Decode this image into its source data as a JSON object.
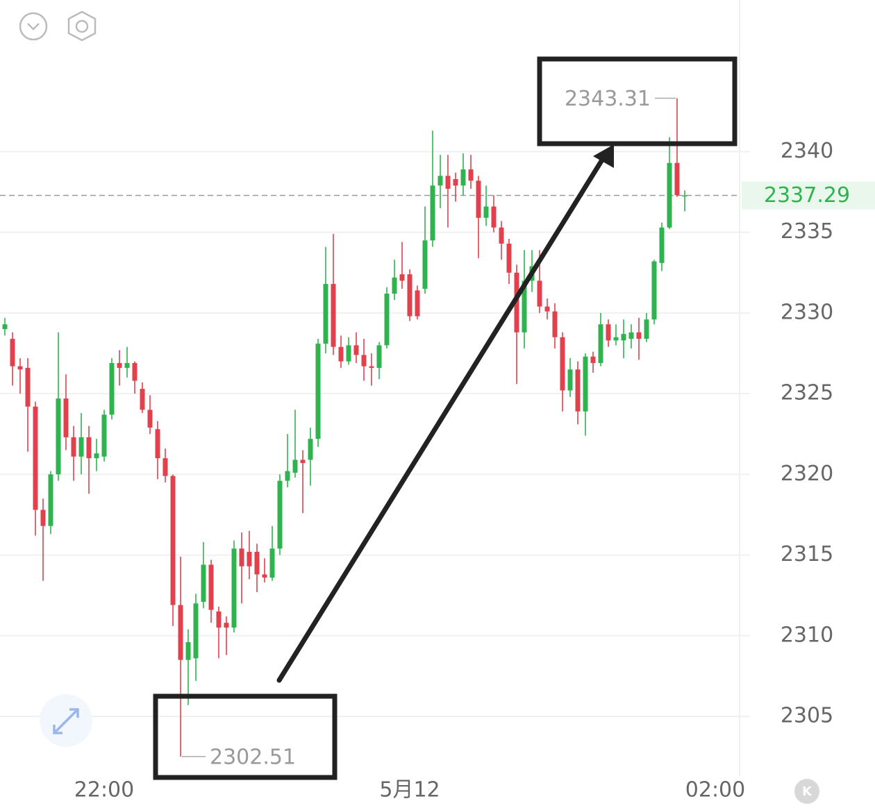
{
  "chart_data": {
    "type": "candlestick",
    "categories": [
      null,
      null,
      null,
      null,
      null,
      null,
      null,
      null,
      null,
      null,
      null,
      null,
      null,
      "22:00",
      null,
      null,
      null,
      null,
      null,
      null,
      null,
      null,
      null,
      null,
      null,
      null,
      null,
      null,
      null,
      null,
      null,
      null,
      null,
      null,
      null,
      null,
      null,
      null,
      null,
      null,
      null,
      null,
      null,
      null,
      null,
      null,
      null,
      null,
      null,
      null,
      null,
      null,
      null,
      "5月12",
      null,
      null,
      null,
      null,
      null,
      null,
      null,
      null,
      null,
      null,
      null,
      null,
      null,
      null,
      null,
      null,
      null,
      null,
      null,
      null,
      null,
      null,
      null,
      null,
      null,
      null,
      null,
      null,
      null,
      null,
      null,
      null,
      null,
      null,
      null,
      null,
      null,
      null,
      null,
      "02:00",
      null,
      null,
      null
    ],
    "open": [
      2329.0,
      2328.4,
      2326.7,
      2326.6,
      2324.2,
      2317.8,
      2316.8,
      2320.0,
      2324.7,
      2322.3,
      2321.1,
      2322.3,
      2321.0,
      2321.1,
      2323.7,
      2326.9,
      2326.6,
      2326.9,
      2325.3,
      2324.0,
      2322.8,
      2321.0,
      2319.9,
      2311.9,
      2308.5,
      2308.6,
      2312.1,
      2314.4,
      2311.5,
      2310.8,
      2310.5,
      2315.4,
      2315.2,
      2315.2,
      2313.8,
      2313.6,
      2315.4,
      2319.6,
      2320.1,
      2320.9,
      2320.9,
      2322.2,
      2328.1,
      2331.8,
      2327.9,
      2327.0,
      2328.0,
      2327.4,
      2326.7,
      2326.6,
      2328.0,
      2331.2,
      2332.4,
      2332.4,
      2331.4,
      2331.5,
      2334.5,
      2337.9,
      2338.5,
      2338.3,
      2337.9,
      2338.9,
      2338.2,
      2335.9,
      2336.6,
      2335.3,
      2334.3,
      2332.5,
      2328.8,
      2332.0,
      2332.0,
      2330.4,
      2330.1,
      2328.5,
      2325.2,
      2326.5,
      2323.9,
      2327.3,
      2326.9,
      2329.3,
      2328.3,
      2328.3,
      2328.4,
      2328.8,
      2328.4,
      2329.6,
      2333.1,
      2335.3,
      2339.3,
      2337.25,
      null,
      null,
      null,
      null,
      null,
      null,
      null
    ],
    "high": [
      2329.7,
      2328.8,
      2327.2,
      2327.2,
      2324.5,
      2318.5,
      2320.2,
      2328.8,
      2326.2,
      2323.0,
      2323.8,
      2323.0,
      2322.2,
      2324.0,
      2327.2,
      2327.7,
      2327.9,
      2327.0,
      2325.7,
      2324.9,
      2323.3,
      2321.6,
      2320.0,
      2314.9,
      2310.4,
      2312.6,
      2315.8,
      2314.7,
      2311.8,
      2311.2,
      2315.9,
      2316.4,
      2316.5,
      2315.7,
      2314.8,
      2316.8,
      2320.0,
      2322.5,
      2324.0,
      2321.5,
      2322.9,
      2328.4,
      2334.1,
      2334.9,
      2328.6,
      2328.5,
      2328.8,
      2328.4,
      2327.5,
      2328.2,
      2331.6,
      2333.3,
      2334.4,
      2332.7,
      2331.7,
      2336.6,
      2341.3,
      2339.8,
      2339.8,
      2338.7,
      2339.9,
      2339.8,
      2338.5,
      2337.9,
      2337.3,
      2335.7,
      2334.6,
      2333.0,
      2333.9,
      2333.9,
      2333.9,
      2330.9,
      2330.6,
      2328.8,
      2327.2,
      2327.0,
      2327.5,
      2327.6,
      2330.0,
      2329.6,
      2329.3,
      2329.6,
      2329.3,
      2329.7,
      2330.0,
      2333.3,
      2335.6,
      2340.9,
      2343.31,
      2337.6,
      null,
      null,
      null,
      null,
      null,
      null,
      null
    ],
    "low": [
      2328.6,
      2325.5,
      2325.0,
      2321.4,
      2316.2,
      2313.4,
      2316.3,
      2319.6,
      2321.5,
      2319.6,
      2320.0,
      2318.8,
      2320.2,
      2320.8,
      2323.4,
      2325.5,
      2326.0,
      2325.0,
      2323.8,
      2322.5,
      2319.7,
      2319.5,
      2310.6,
      2302.51,
      2305.7,
      2307.2,
      2311.7,
      2310.8,
      2308.6,
      2308.8,
      2310.2,
      2312.0,
      2313.5,
      2312.7,
      2313.3,
      2313.4,
      2315.0,
      2319.2,
      2319.8,
      2317.6,
      2319.3,
      2321.7,
      2327.5,
      2327.4,
      2326.6,
      2326.8,
      2326.9,
      2325.8,
      2325.5,
      2325.9,
      2327.8,
      2330.8,
      2331.5,
      2329.5,
      2329.6,
      2331.2,
      2334.1,
      2336.5,
      2335.3,
      2336.9,
      2337.3,
      2337.7,
      2333.4,
      2335.4,
      2335.0,
      2333.3,
      2331.8,
      2325.6,
      2327.8,
      2331.3,
      2330.0,
      2329.6,
      2327.8,
      2323.9,
      2324.8,
      2323.1,
      2322.4,
      2326.3,
      2326.7,
      2327.9,
      2328.0,
      2327.2,
      2327.8,
      2327.1,
      2328.2,
      2329.3,
      2332.6,
      2335.2,
      2337.2,
      2336.3,
      null,
      null,
      null,
      null,
      null,
      null,
      null
    ],
    "close": [
      2329.3,
      2326.7,
      2326.5,
      2324.2,
      2317.8,
      2316.8,
      2320.0,
      2324.7,
      2322.3,
      2321.1,
      2322.3,
      2321.0,
      2321.3,
      2323.7,
      2326.9,
      2326.6,
      2326.9,
      2325.8,
      2324.0,
      2322.9,
      2321.0,
      2319.9,
      2311.9,
      2308.5,
      2309.6,
      2312.0,
      2314.4,
      2311.6,
      2310.5,
      2310.5,
      2315.4,
      2314.3,
      2314.3,
      2313.8,
      2313.6,
      2315.4,
      2319.6,
      2320.2,
      2320.9,
      2320.7,
      2322.2,
      2328.1,
      2331.8,
      2327.9,
      2327.0,
      2328.0,
      2327.4,
      2326.7,
      2326.6,
      2328.0,
      2331.2,
      2332.2,
      2332.0,
      2329.8,
      2329.8,
      2334.5,
      2337.9,
      2338.5,
      2337.7,
      2337.9,
      2338.9,
      2338.2,
      2335.9,
      2336.6,
      2335.3,
      2334.3,
      2332.5,
      2328.8,
      2332.0,
      2332.9,
      2330.4,
      2330.1,
      2328.5,
      2325.2,
      2326.5,
      2323.9,
      2327.3,
      2326.9,
      2329.3,
      2328.3,
      2328.5,
      2328.7,
      2328.8,
      2328.4,
      2329.6,
      2333.2,
      2335.3,
      2339.3,
      2337.3,
      2337.29,
      null,
      null,
      null,
      null,
      null,
      null,
      null
    ],
    "up_color": "#2fb34f",
    "down_color": "#e1414c",
    "ylim": [
      2301.3,
      2349.4
    ],
    "yticks": [
      2305,
      2310,
      2315,
      2320,
      2325,
      2330,
      2335,
      2340
    ],
    "grid": true
  },
  "kline_button": "K"
}
